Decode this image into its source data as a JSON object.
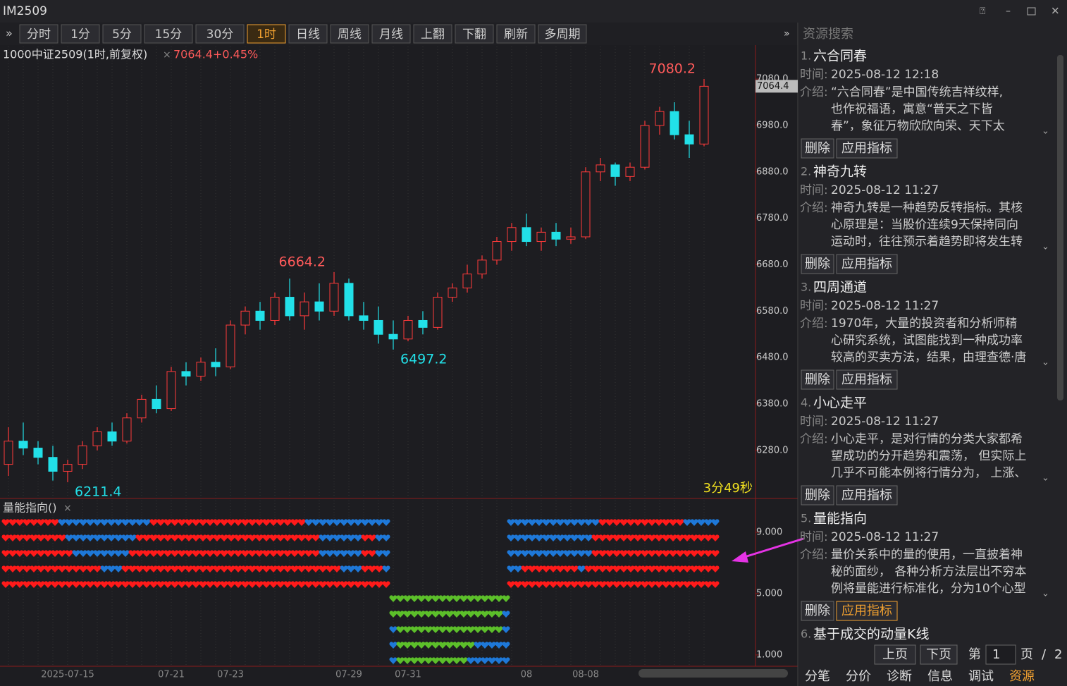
{
  "window": {
    "title": "IM2509"
  },
  "toolbar": {
    "buttons": [
      "分时",
      "1分",
      "5分",
      "15分",
      "30分",
      "1时",
      "日线",
      "周线",
      "月线",
      "上翻",
      "下翻",
      "刷新",
      "多周期"
    ],
    "active_index": 5
  },
  "chart": {
    "type": "candlestick",
    "name": "1000中证2509(1时,前复权)",
    "change": "7064.4+0.45%",
    "countdown": "3分49秒",
    "up_color": "#ff3b3b",
    "down_color": "#22e0e8",
    "ylim": [
      6178,
      7150
    ],
    "yticks": [
      {
        "value": 6280,
        "label": "6280.0"
      },
      {
        "value": 6380,
        "label": "6380.0"
      },
      {
        "value": 6480,
        "label": "6480.0"
      },
      {
        "value": 6580,
        "label": "6580.0"
      },
      {
        "value": 6680,
        "label": "6680.0"
      },
      {
        "value": 6780,
        "label": "6780.0"
      },
      {
        "value": 6880,
        "label": "6880.0"
      },
      {
        "value": 6980,
        "label": "6980.0"
      },
      {
        "value": 7080,
        "label": "7080.0"
      }
    ],
    "categories": [
      null,
      null,
      null,
      null,
      "2025-07-15",
      null,
      null,
      null,
      null,
      null,
      null,
      "07-21",
      null,
      null,
      null,
      "07-23",
      null,
      null,
      null,
      null,
      null,
      null,
      null,
      "07-29",
      null,
      null,
      null,
      "07-31",
      null,
      null,
      null,
      null,
      null,
      null,
      null,
      "08",
      null,
      null,
      null,
      "08-08",
      null,
      null,
      null,
      null,
      null,
      null,
      null,
      null
    ],
    "candles": [
      [
        6250,
        6330,
        6225,
        6300
      ],
      [
        6300,
        6340,
        6270,
        6285
      ],
      [
        6285,
        6300,
        6250,
        6265
      ],
      [
        6265,
        6290,
        6215,
        6235
      ],
      [
        6235,
        6260,
        6211.4,
        6250
      ],
      [
        6250,
        6300,
        6240,
        6290
      ],
      [
        6290,
        6330,
        6280,
        6320
      ],
      [
        6320,
        6340,
        6290,
        6300
      ],
      [
        6300,
        6360,
        6295,
        6350
      ],
      [
        6350,
        6400,
        6340,
        6390
      ],
      [
        6390,
        6420,
        6360,
        6370
      ],
      [
        6370,
        6460,
        6365,
        6450
      ],
      [
        6450,
        6470,
        6420,
        6440
      ],
      [
        6440,
        6480,
        6430,
        6470
      ],
      [
        6470,
        6500,
        6440,
        6460
      ],
      [
        6460,
        6560,
        6455,
        6550
      ],
      [
        6550,
        6590,
        6530,
        6580
      ],
      [
        6580,
        6600,
        6540,
        6560
      ],
      [
        6560,
        6620,
        6550,
        6610
      ],
      [
        6610,
        6650,
        6560,
        6570
      ],
      [
        6570,
        6620,
        6540,
        6600
      ],
      [
        6600,
        6640,
        6560,
        6580
      ],
      [
        6580,
        6664.2,
        6570,
        6640
      ],
      [
        6640,
        6650,
        6560,
        6570
      ],
      [
        6570,
        6600,
        6540,
        6560
      ],
      [
        6560,
        6590,
        6510,
        6530
      ],
      [
        6530,
        6560,
        6497.2,
        6520
      ],
      [
        6520,
        6570,
        6515,
        6560
      ],
      [
        6560,
        6580,
        6530,
        6545
      ],
      [
        6545,
        6620,
        6540,
        6610
      ],
      [
        6610,
        6640,
        6600,
        6630
      ],
      [
        6630,
        6680,
        6620,
        6660
      ],
      [
        6660,
        6700,
        6650,
        6690
      ],
      [
        6690,
        6740,
        6680,
        6730
      ],
      [
        6730,
        6770,
        6710,
        6760
      ],
      [
        6760,
        6790,
        6720,
        6730
      ],
      [
        6730,
        6760,
        6710,
        6750
      ],
      [
        6750,
        6770,
        6720,
        6735
      ],
      [
        6735,
        6760,
        6725,
        6740
      ],
      [
        6740,
        6890,
        6735,
        6880
      ],
      [
        6880,
        6910,
        6860,
        6895
      ],
      [
        6895,
        6900,
        6850,
        6870
      ],
      [
        6870,
        6900,
        6860,
        6890
      ],
      [
        6890,
        6990,
        6885,
        6980
      ],
      [
        6980,
        7020,
        6960,
        7010
      ],
      [
        7010,
        7030,
        6950,
        6960
      ],
      [
        6960,
        6990,
        6910,
        6940
      ],
      [
        6940,
        7080.2,
        6935,
        7064.4
      ]
    ],
    "annotations": [
      {
        "candle": 47,
        "field": 1,
        "color": "#ff5a5a"
      },
      {
        "candle": 22,
        "field": 1,
        "color": "#ff5a5a"
      },
      {
        "candle": 26,
        "field": 2,
        "color": "#22e0e8"
      },
      {
        "candle": 4,
        "field": 2,
        "color": "#22e0e8"
      }
    ]
  },
  "indicator": {
    "name": "量能指向()",
    "ylim": [
      0.26,
      11.16
    ],
    "yticks": [
      {
        "value": 9,
        "label": "9.000"
      },
      {
        "value": 5,
        "label": "5.000"
      },
      {
        "value": 1,
        "label": "1.000"
      }
    ],
    "colors": {
      "r": "#ff1a1a",
      "b": "#1e78d8",
      "g": "#5cbf2a"
    },
    "blocks": [
      {
        "rows": [
          [
            [
              "r",
              8
            ],
            [
              "b",
              13
            ],
            [
              "r",
              22
            ],
            [
              "b",
              12
            ]
          ],
          [
            [
              "r",
              9
            ],
            [
              "b",
              10
            ],
            [
              "r",
              26
            ],
            [
              "b",
              6
            ],
            [
              "r",
              2
            ],
            [
              "b",
              2
            ]
          ],
          [
            [
              "r",
              10
            ],
            [
              "b",
              8
            ],
            [
              "r",
              27
            ],
            [
              "b",
              6
            ],
            [
              "r",
              2
            ],
            [
              "b",
              2
            ]
          ],
          [
            [
              "r",
              14
            ],
            [
              "b",
              3
            ],
            [
              "r",
              31
            ],
            [
              "b",
              3
            ],
            [
              "r",
              3
            ],
            [
              "b",
              1
            ]
          ],
          [
            [
              "r",
              55
            ]
          ]
        ]
      },
      {
        "rows": [
          [
            [
              "g",
              17
            ]
          ],
          [
            [
              "g",
              16
            ],
            [
              "b",
              1
            ]
          ],
          [
            [
              "b",
              1
            ],
            [
              "g",
              15
            ],
            [
              "b",
              1
            ]
          ],
          [
            [
              "b",
              1
            ],
            [
              "g",
              11
            ],
            [
              "b",
              5
            ]
          ],
          [
            [
              "b",
              1
            ],
            [
              "g",
              10
            ],
            [
              "b",
              6
            ]
          ]
        ]
      },
      {
        "rows": [
          [
            [
              "b",
              13
            ],
            [
              "r",
              12
            ],
            [
              "b",
              5
            ]
          ],
          [
            [
              "b",
              12
            ],
            [
              "r",
              18
            ]
          ],
          [
            [
              "b",
              12
            ],
            [
              "r",
              18
            ]
          ],
          [
            [
              "b",
              2
            ],
            [
              "r",
              8
            ],
            [
              "b",
              1
            ],
            [
              "r",
              19
            ]
          ],
          [
            [
              "r",
              30
            ]
          ]
        ]
      }
    ]
  },
  "panel": {
    "title": "资源搜索",
    "time_label": "时间:",
    "intro_label": "介绍:",
    "delete": "删除",
    "apply": "应用指标",
    "items": [
      {
        "index": "1.",
        "title": "六合同春",
        "time": "2025-08-12 12:18",
        "intro": [
          "“六合同春”是中国传统吉祥纹样,",
          "也作祝福语，寓意“普天之下皆",
          "春”，象征万物欣欣向荣、天下太"
        ]
      },
      {
        "index": "2.",
        "title": "神奇九转",
        "time": "2025-08-12 11:27",
        "intro": [
          "神奇九转是一种趋势反转指标。其核",
          "心原理是：当股价连续9天保持同向",
          "运动时，往往预示着趋势即将发生转"
        ]
      },
      {
        "index": "3.",
        "title": "四周通道",
        "time": "2025-08-12 11:27",
        "intro": [
          "1970年，大量的投资者和分析师精",
          "心研究系统，试图能找到一种成功率",
          "较高的买卖方法，结果，由理查德·唐"
        ]
      },
      {
        "index": "4.",
        "title": "小心走平",
        "time": "2025-08-12 11:27",
        "intro": [
          "小心走平，是对行情的分类大家都希",
          "望成功的分开趋势和震荡， 但实际上",
          "几乎不可能本例将行情分为， 上涨、"
        ]
      },
      {
        "index": "5.",
        "title": "量能指向",
        "time": "2025-08-12 11:27",
        "intro": [
          "量价关系中的量的使用，一直披着神",
          "秘的面纱， 各种分析方法层出不穷本",
          "例将量能进行标准化，分为10个心型"
        ]
      },
      {
        "index": "6.",
        "title": "基于成交的动量K线"
      }
    ],
    "highlight_apply": 4,
    "pager": {
      "prev": "上页",
      "next": "下页",
      "pre": "第",
      "page": "1",
      "post": "页",
      "slash": "/",
      "total": "2"
    }
  },
  "tabs": {
    "items": [
      "分笔",
      "分价",
      "诊断",
      "信息",
      "调试",
      "资源"
    ],
    "active_index": 5
  }
}
